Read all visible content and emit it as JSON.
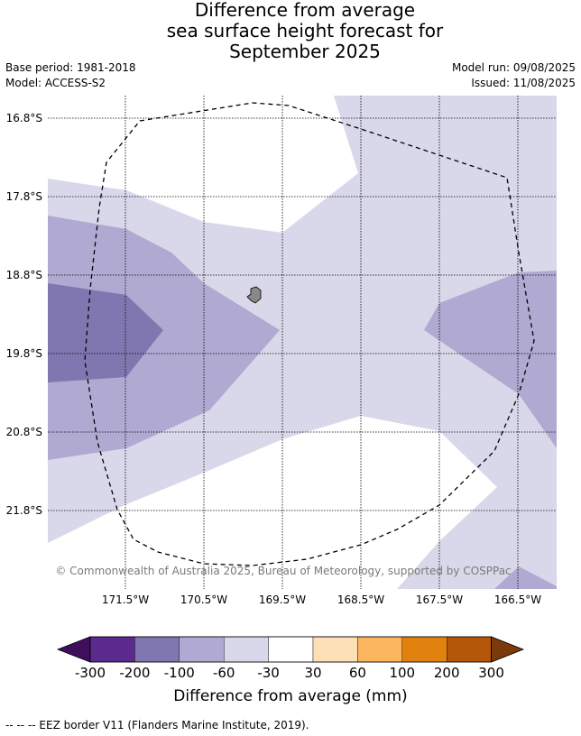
{
  "header": {
    "title_line1": "Difference from average",
    "title_line2": "sea surface height forecast for",
    "title_line3": "September 2025",
    "base_period": "Base period: 1981-2018",
    "model": "Model: ACCESS-S2",
    "model_run": "Model run: 09/08/2025",
    "issued": "Issued: 11/08/2025"
  },
  "map": {
    "lat_labels": [
      "16.8°S",
      "17.8°S",
      "18.8°S",
      "19.8°S",
      "20.8°S",
      "21.8°S"
    ],
    "lon_labels": [
      "171.5°W",
      "170.5°W",
      "169.5°W",
      "168.5°W",
      "167.5°W",
      "166.5°W"
    ],
    "copyright": "© Commonwealth of Australia 2025, Bureau of Meteorology, supported by COSPPac",
    "colors": {
      "anom_-60_-30": "#d8d8ea",
      "anom_-100_-60": "#b0a9d2",
      "anom_-200_-100": "#8177b0",
      "island": "#888888",
      "eez": "#000000"
    }
  },
  "colorbar": {
    "ticks": [
      "-300",
      "-200",
      "-100",
      "-60",
      "-30",
      "30",
      "60",
      "100",
      "200",
      "300"
    ],
    "colors": [
      "#3f0f5e",
      "#5a2a8e",
      "#8177b0",
      "#b0a9d2",
      "#d8d8ea",
      "#ffffff",
      "#fde0b5",
      "#fbb65e",
      "#e2820e",
      "#b45708",
      "#7a3a0c"
    ],
    "label": "Difference from average (mm)"
  },
  "footnote": "--  --  -- EEZ border V11 (Flanders Marine Institute, 2019)."
}
